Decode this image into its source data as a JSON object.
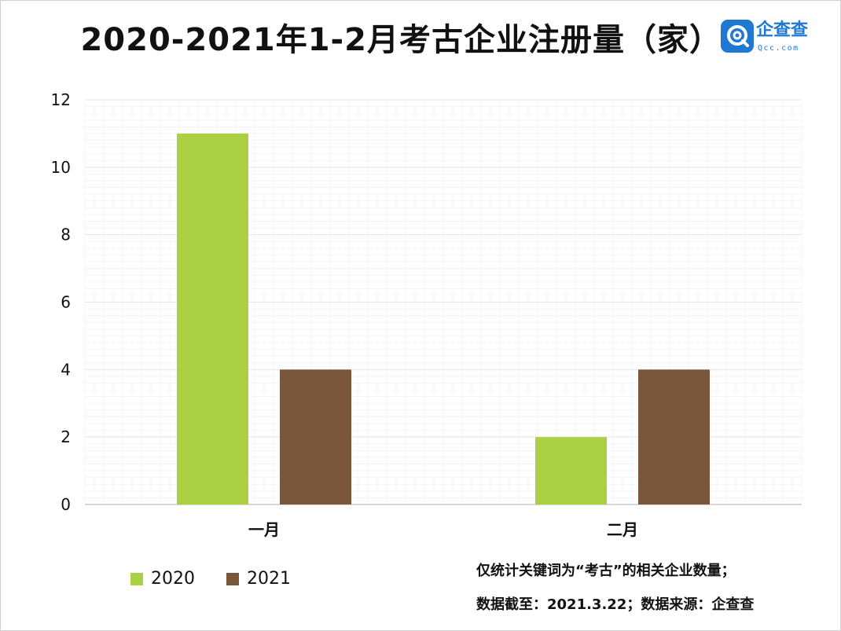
{
  "title": "2020-2021年1-2月考古企业注册量（家）",
  "logo": {
    "name": "企查查",
    "sub": "Qcc.com"
  },
  "colors": {
    "series_2020": "#acd044",
    "series_2021": "#7a563b",
    "grid": "#e6e6e6",
    "axis": "#cccccc",
    "logo": "#1f78d1"
  },
  "notes": {
    "line1": "仅统计关键词为“考古”的相关企业数量；",
    "line2": "数据截至：2021.3.22；数据来源：企查查"
  },
  "chart_data": {
    "type": "bar",
    "title": "2020-2021年1-2月考古企业注册量（家）",
    "categories": [
      "一月",
      "二月"
    ],
    "series": [
      {
        "name": "2020",
        "values": [
          11,
          2
        ]
      },
      {
        "name": "2021",
        "values": [
          4,
          4
        ]
      }
    ],
    "ylim": [
      0,
      12
    ],
    "yticks": [
      "0",
      "2",
      "4",
      "6",
      "8",
      "10",
      "12"
    ],
    "grid": true,
    "legend": "bottom-left"
  }
}
